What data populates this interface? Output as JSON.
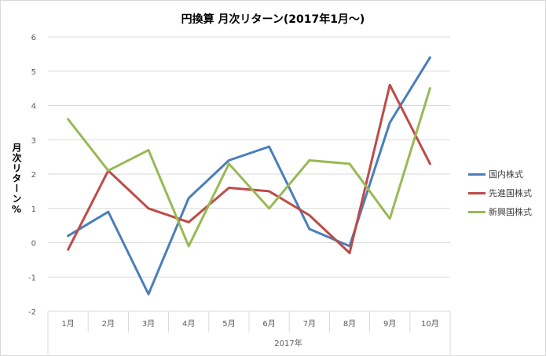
{
  "chart_data": {
    "type": "line",
    "title": "円換算 月次リターン(2017年1月〜)",
    "xlabel": "2017年",
    "ylabel": "月次リターン%",
    "categories": [
      "1月",
      "2月",
      "3月",
      "4月",
      "5月",
      "6月",
      "7月",
      "8月",
      "9月",
      "10月"
    ],
    "ylim": [
      -2,
      6
    ],
    "yticks": [
      6,
      5,
      4,
      3,
      2,
      1,
      0,
      -1,
      -2
    ],
    "grid": true,
    "legend_position": "right",
    "series": [
      {
        "name": "国内株式",
        "color": "#4a7ebb",
        "values": [
          0.2,
          0.9,
          -1.5,
          1.3,
          2.4,
          2.8,
          0.4,
          -0.1,
          3.5,
          5.4
        ]
      },
      {
        "name": "先進国株式",
        "color": "#be4b48",
        "values": [
          -0.2,
          2.1,
          1.0,
          0.6,
          1.6,
          1.5,
          0.8,
          -0.3,
          4.6,
          2.3
        ]
      },
      {
        "name": "新興国株式",
        "color": "#98b954",
        "values": [
          3.6,
          2.1,
          2.7,
          -0.1,
          2.3,
          1.0,
          2.4,
          2.3,
          0.7,
          4.5
        ]
      }
    ]
  }
}
